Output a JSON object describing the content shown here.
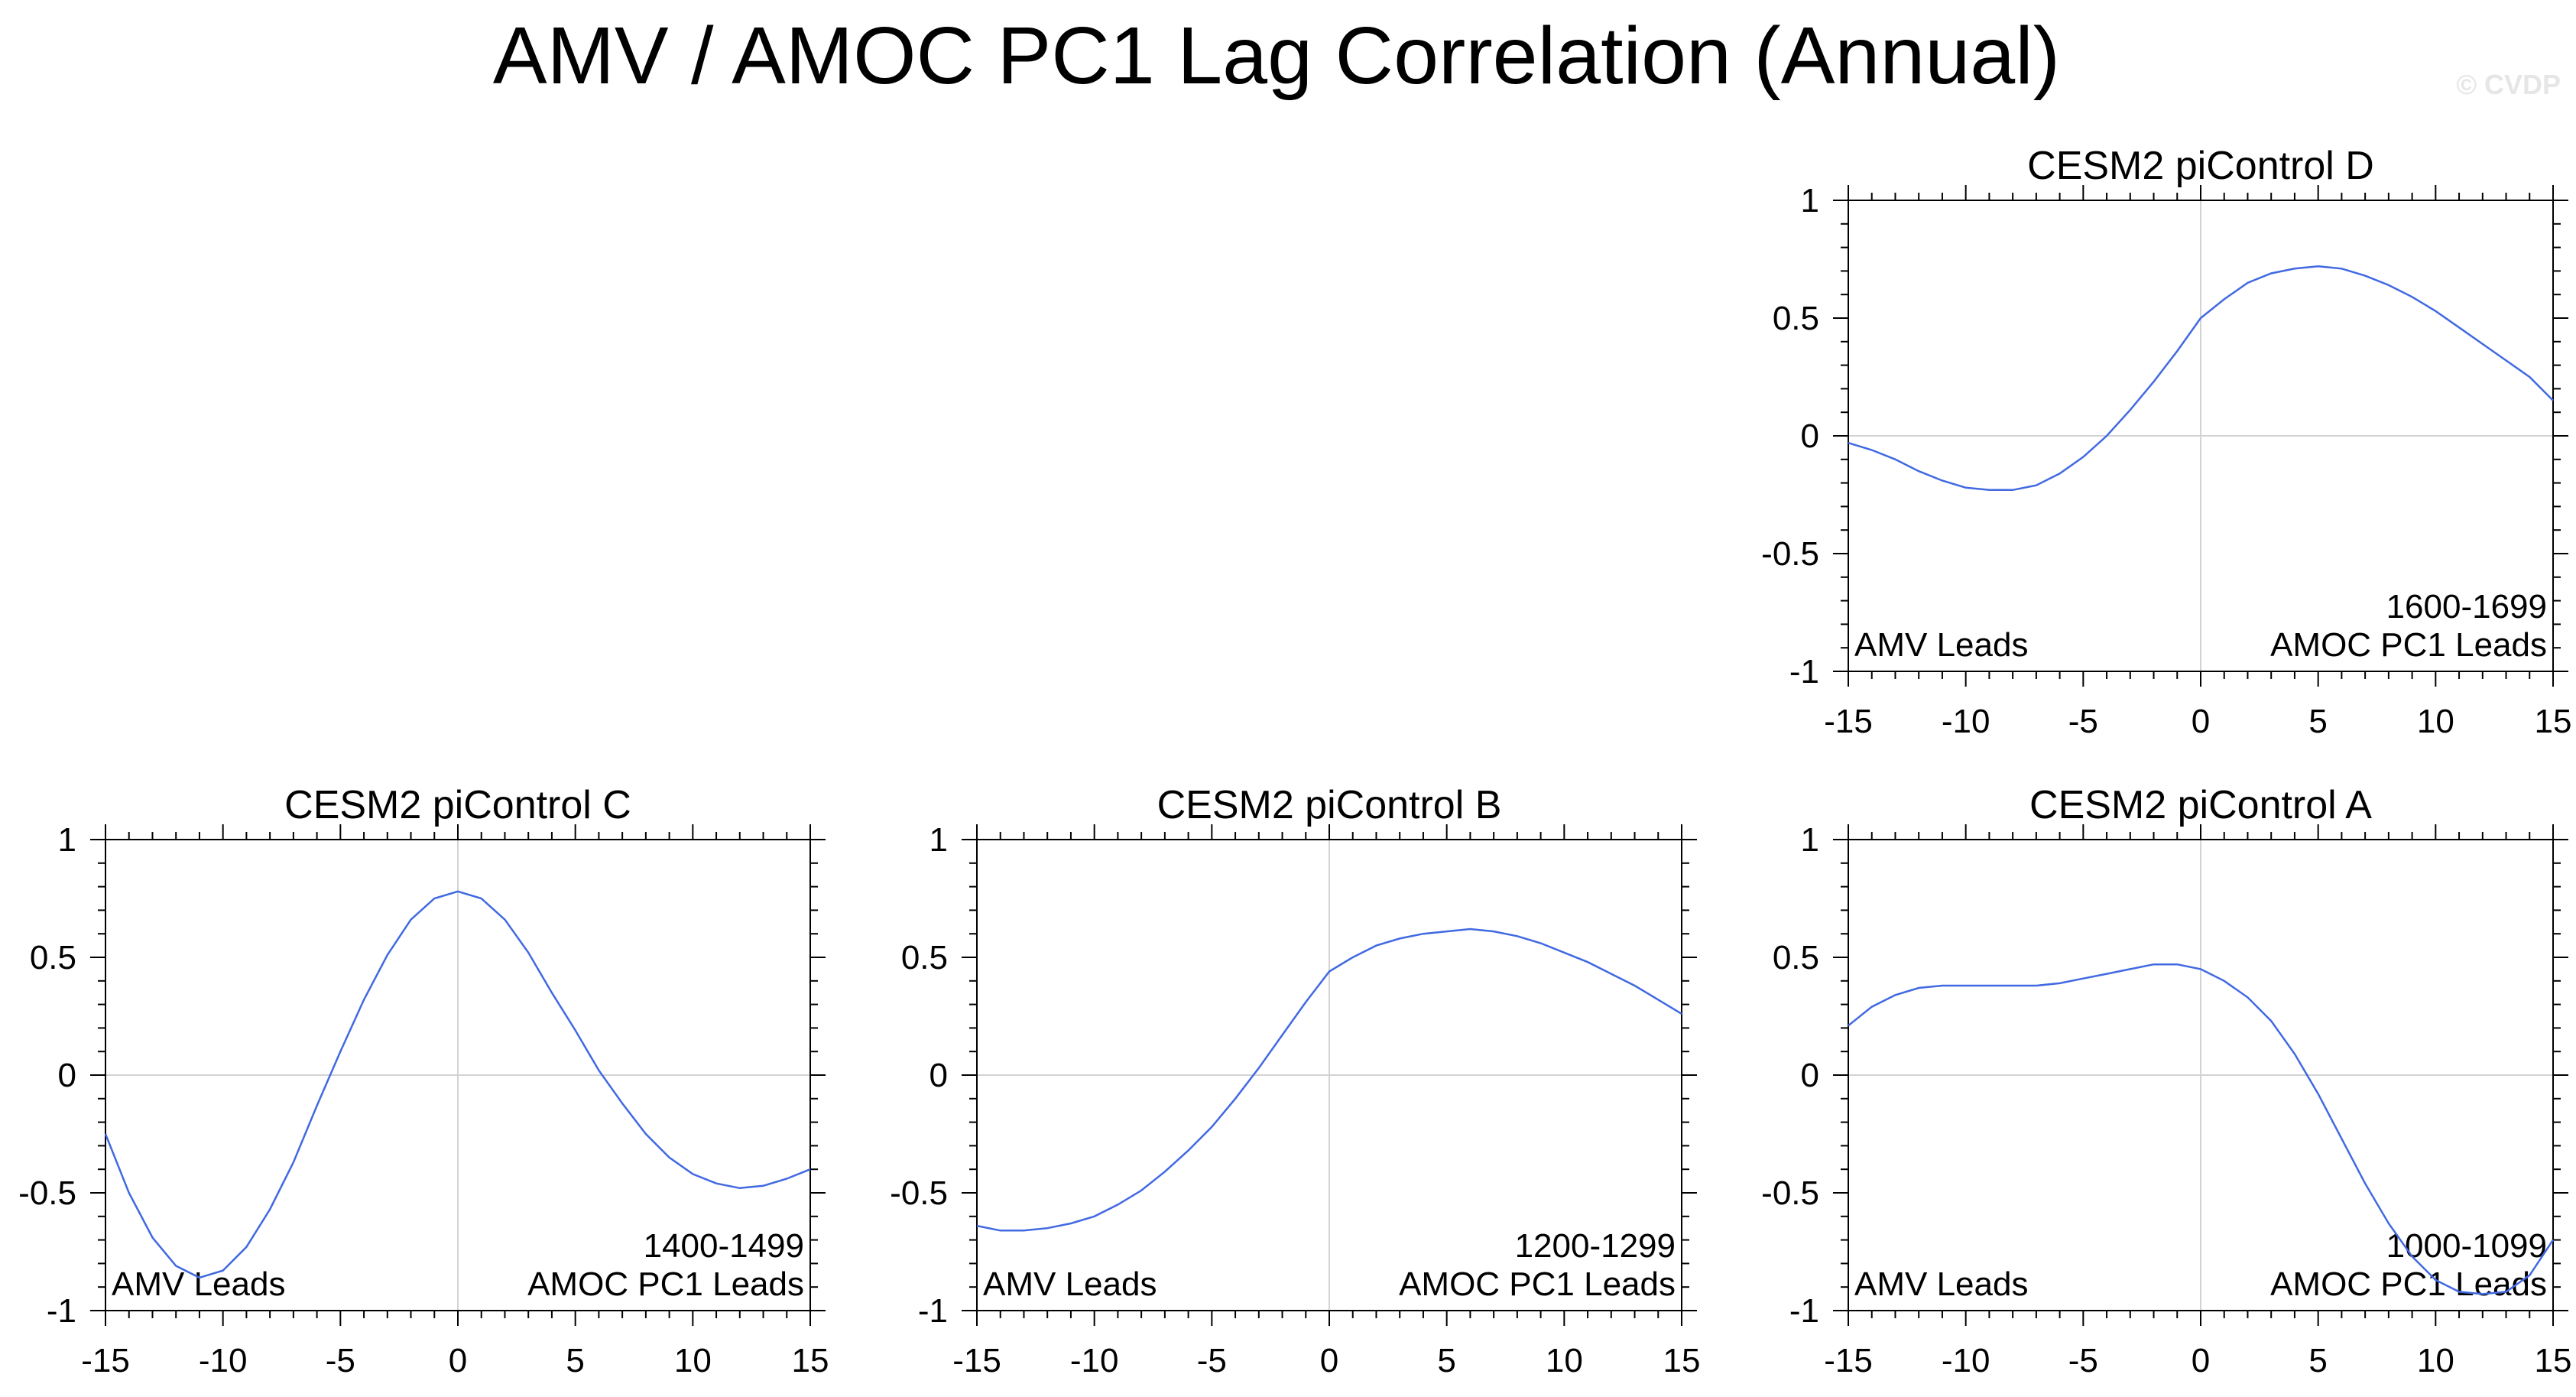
{
  "title": "AMV / AMOC PC1 Lag Correlation (Annual)",
  "watermark": "© CVDP",
  "colors": {
    "line": "#4169e1",
    "grid": "#d3d3d3",
    "axis": "#000000"
  },
  "chart_data": [
    {
      "type": "line",
      "title": "CESM2 piControl D",
      "period": "1600-1699",
      "left_label": "AMV Leads",
      "right_label": "AMOC PC1 Leads",
      "xlim": [
        -15,
        15
      ],
      "ylim": [
        -1,
        1
      ],
      "xticks": [
        "-15",
        "-10",
        "-5",
        "0",
        "5",
        "10",
        "15"
      ],
      "yticks": [
        "1",
        "0.5",
        "0",
        "-0.5",
        "-1"
      ],
      "x": [
        -15,
        -14,
        -13,
        -12,
        -11,
        -10,
        -9,
        -8,
        -7,
        -6,
        -5,
        -4,
        -3,
        -2,
        -1,
        0,
        1,
        2,
        3,
        4,
        5,
        6,
        7,
        8,
        9,
        10,
        11,
        12,
        13,
        14,
        15
      ],
      "y": [
        -0.03,
        -0.06,
        -0.1,
        -0.15,
        -0.19,
        -0.22,
        -0.23,
        -0.23,
        -0.21,
        -0.16,
        -0.09,
        0.0,
        0.11,
        0.23,
        0.36,
        0.5,
        0.58,
        0.65,
        0.69,
        0.71,
        0.72,
        0.71,
        0.68,
        0.64,
        0.59,
        0.53,
        0.46,
        0.39,
        0.32,
        0.25,
        0.15
      ]
    },
    {
      "type": "line",
      "title": "CESM2 piControl C",
      "period": "1400-1499",
      "left_label": "AMV Leads",
      "right_label": "AMOC PC1 Leads",
      "xlim": [
        -15,
        15
      ],
      "ylim": [
        -1,
        1
      ],
      "xticks": [
        "-15",
        "-10",
        "-5",
        "0",
        "5",
        "10",
        "15"
      ],
      "yticks": [
        "1",
        "0.5",
        "0",
        "-0.5",
        "-1"
      ],
      "x": [
        -15,
        -14,
        -13,
        -12,
        -11,
        -10,
        -9,
        -8,
        -7,
        -6,
        -5,
        -4,
        -3,
        -2,
        -1,
        0,
        1,
        2,
        3,
        4,
        5,
        6,
        7,
        8,
        9,
        10,
        11,
        12,
        13,
        14,
        15
      ],
      "y": [
        -0.25,
        -0.5,
        -0.69,
        -0.81,
        -0.86,
        -0.83,
        -0.73,
        -0.57,
        -0.37,
        -0.13,
        0.1,
        0.32,
        0.51,
        0.66,
        0.75,
        0.78,
        0.75,
        0.66,
        0.52,
        0.35,
        0.19,
        0.02,
        -0.12,
        -0.25,
        -0.35,
        -0.42,
        -0.46,
        -0.48,
        -0.47,
        -0.44,
        -0.4
      ]
    },
    {
      "type": "line",
      "title": "CESM2 piControl B",
      "period": "1200-1299",
      "left_label": "AMV Leads",
      "right_label": "AMOC PC1 Leads",
      "xlim": [
        -15,
        15
      ],
      "ylim": [
        -1,
        1
      ],
      "xticks": [
        "-15",
        "-10",
        "-5",
        "0",
        "5",
        "10",
        "15"
      ],
      "yticks": [
        "1",
        "0.5",
        "0",
        "-0.5",
        "-1"
      ],
      "x": [
        -15,
        -14,
        -13,
        -12,
        -11,
        -10,
        -9,
        -8,
        -7,
        -6,
        -5,
        -4,
        -3,
        -2,
        -1,
        0,
        1,
        2,
        3,
        4,
        5,
        6,
        7,
        8,
        9,
        10,
        11,
        12,
        13,
        14,
        15
      ],
      "y": [
        -0.64,
        -0.66,
        -0.66,
        -0.65,
        -0.63,
        -0.6,
        -0.55,
        -0.49,
        -0.41,
        -0.32,
        -0.22,
        -0.1,
        0.03,
        0.17,
        0.31,
        0.44,
        0.5,
        0.55,
        0.58,
        0.6,
        0.61,
        0.62,
        0.61,
        0.59,
        0.56,
        0.52,
        0.48,
        0.43,
        0.38,
        0.32,
        0.26
      ]
    },
    {
      "type": "line",
      "title": "CESM2 piControl A",
      "period": "1000-1099",
      "left_label": "AMV Leads",
      "right_label": "AMOC PC1 Leads",
      "xlim": [
        -15,
        15
      ],
      "ylim": [
        -1,
        1
      ],
      "xticks": [
        "-15",
        "-10",
        "-5",
        "0",
        "5",
        "10",
        "15"
      ],
      "yticks": [
        "1",
        "0.5",
        "0",
        "-0.5",
        "-1"
      ],
      "x": [
        -15,
        -14,
        -13,
        -12,
        -11,
        -10,
        -9,
        -8,
        -7,
        -6,
        -5,
        -4,
        -3,
        -2,
        -1,
        0,
        1,
        2,
        3,
        4,
        5,
        6,
        7,
        8,
        9,
        10,
        11,
        12,
        13,
        14,
        15
      ],
      "y": [
        0.21,
        0.29,
        0.34,
        0.37,
        0.38,
        0.38,
        0.38,
        0.38,
        0.38,
        0.39,
        0.41,
        0.43,
        0.45,
        0.47,
        0.47,
        0.45,
        0.4,
        0.33,
        0.23,
        0.09,
        -0.08,
        -0.27,
        -0.46,
        -0.63,
        -0.77,
        -0.87,
        -0.92,
        -0.93,
        -0.92,
        -0.85,
        -0.7
      ]
    }
  ]
}
